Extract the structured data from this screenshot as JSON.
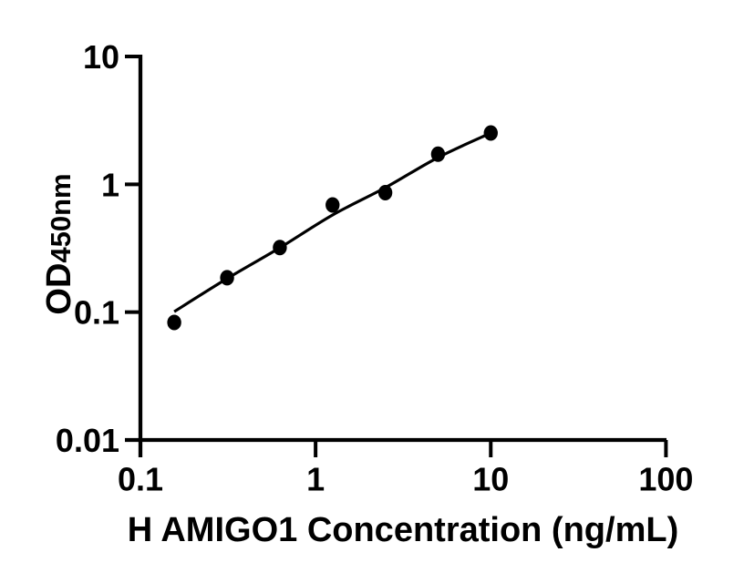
{
  "figure": {
    "background": "#ffffff",
    "ink": "#000000"
  },
  "chart_data": {
    "type": "scatter",
    "title": "",
    "xlabel": "H AMIGO1 Concentration (ng/mL)",
    "ylabel_main": "OD",
    "ylabel_sub": "450nm",
    "x_scale": "log",
    "y_scale": "log",
    "xlim": [
      0.1,
      100
    ],
    "ylim": [
      0.01,
      10
    ],
    "grid": false,
    "legend_position": "none",
    "x_ticks": [
      {
        "value": 0.1,
        "label": "0.1"
      },
      {
        "value": 1,
        "label": "1"
      },
      {
        "value": 10,
        "label": "10"
      },
      {
        "value": 100,
        "label": "100"
      }
    ],
    "y_ticks": [
      {
        "value": 10,
        "label": "10"
      },
      {
        "value": 1,
        "label": "1"
      },
      {
        "value": 0.1,
        "label": "0.1"
      },
      {
        "value": 0.01,
        "label": "0.01"
      }
    ],
    "series": [
      {
        "marker": "filled-circle",
        "color": "#000000",
        "points": [
          {
            "x": 0.156,
            "y": 0.083
          },
          {
            "x": 0.3125,
            "y": 0.186
          },
          {
            "x": 0.625,
            "y": 0.32
          },
          {
            "x": 1.25,
            "y": 0.69
          },
          {
            "x": 2.5,
            "y": 0.86
          },
          {
            "x": 5,
            "y": 1.72
          },
          {
            "x": 10,
            "y": 2.52
          }
        ],
        "fit_curve": [
          {
            "x": 0.156,
            "y": 0.101
          },
          {
            "x": 0.3125,
            "y": 0.183
          },
          {
            "x": 0.625,
            "y": 0.319
          },
          {
            "x": 1.25,
            "y": 0.576
          },
          {
            "x": 2.5,
            "y": 0.942
          },
          {
            "x": 5,
            "y": 1.62
          },
          {
            "x": 10,
            "y": 2.52
          }
        ]
      }
    ]
  }
}
